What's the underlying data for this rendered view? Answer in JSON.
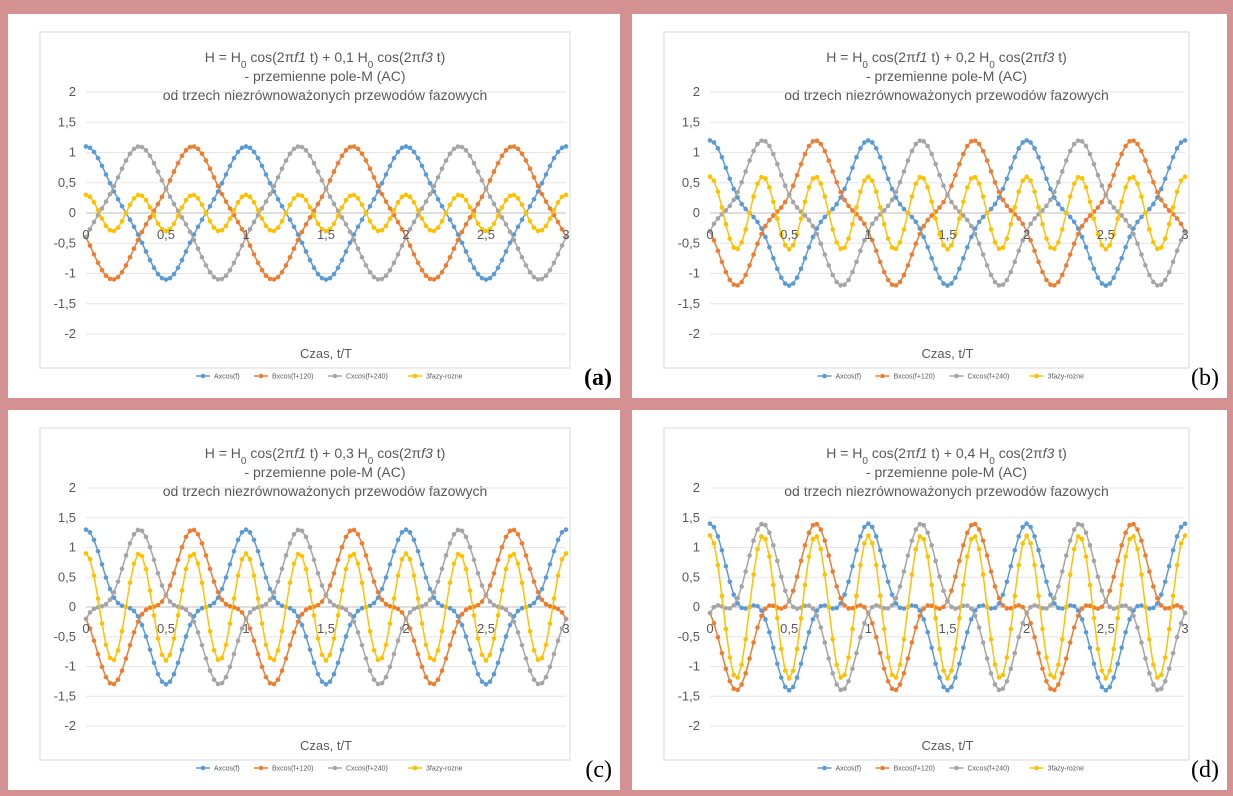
{
  "panels": [
    {
      "tag": "(a)",
      "tag_bold": true,
      "title_lines": [
        "H = H0 cos(2πf1 t)  +  0,1 H0 cos(2πf3 t)",
        "- przemienne pole-M (AC)",
        "od trzech niezrównoważonych przewodów fazowych"
      ],
      "title_parts": {
        "prefix": "H = H",
        "sub0": "0",
        "mid1": " cos(2π",
        "f1": "f1",
        "mid2": " t)  +  0,1 H",
        "sub0b": "0",
        "mid3": " cos(2π",
        "f3": "f3",
        "end": " t)"
      }
    },
    {
      "tag": "(b)",
      "tag_bold": false,
      "title_lines": [
        "H = H0 cos(2πf1 t)  +  0,2 H0 cos(2πf3 t)",
        "- przemienne pole-M (AC)",
        "od trzech niezrównoważonych przewodów fazowych"
      ],
      "title_parts": {
        "prefix": "H = H",
        "sub0": "0",
        "mid1": " cos(2π",
        "f1": "f1",
        "mid2": " t)  +  0,2 H",
        "sub0b": "0",
        "mid3": " cos(2π",
        "f3": "f3",
        "end": " t)"
      }
    },
    {
      "tag": "(c)",
      "tag_bold": false,
      "title_lines": [
        "H = H0 cos(2πf1 t)  +  0,3 H0 cos(2πf3 t)",
        "- przemienne pole-M (AC)",
        "od trzech niezrównoważonych przewodów fazowych"
      ],
      "title_parts": {
        "prefix": "H = H",
        "sub0": "0",
        "mid1": " cos(2π",
        "f1": "f1",
        "mid2": " t)  +  0,3 H",
        "sub0b": "0",
        "mid3": " cos(2π",
        "f3": "f3",
        "end": " t)"
      }
    },
    {
      "tag": "(d)",
      "tag_bold": false,
      "title_lines": [
        "H = H0 cos(2πf1 t)  +  0,4 H0 cos(2πf3 t)",
        "- przemienne pole-M (AC)",
        "od trzech niezrównoważonych przewodów fazowych"
      ],
      "title_parts": {
        "prefix": "H = H",
        "sub0": "0",
        "mid1": " cos(2π",
        "f1": "f1",
        "mid2": " t)  +  0,4 H",
        "sub0b": "0",
        "mid3": " cos(2π",
        "f3": "f3",
        "end": " t)"
      }
    }
  ],
  "chart_data": [
    {
      "type": "line",
      "title": "H = H0 cos(2πf1 t) + 0,1 H0 cos(2πf3 t) - przemienne pole-M (AC) od trzech niezrównoważonych przewodów fazowych",
      "xlabel": "Czas, t/T",
      "ylabel": "",
      "xlim": [
        0,
        3
      ],
      "ylim": [
        -2,
        2
      ],
      "x_ticks": [
        "0",
        "0,5",
        "1",
        "1,5",
        "2",
        "2,5",
        "3"
      ],
      "y_ticks": [
        "2",
        "1,5",
        "1",
        "0,5",
        "0",
        "-0,5",
        "-1",
        "-1,5",
        "-2"
      ],
      "legend_position": "bottom",
      "grid": true,
      "amp3": 0.1,
      "x": "0 to 3, step 0.025 (121 points per series)",
      "series": [
        {
          "name": "Axcos(f)",
          "color": "#5b9bd5",
          "formula": "cos(2π·t) + 0,1·cos(6π·t)"
        },
        {
          "name": "Bxcos(f+120)",
          "color": "#ed7d31",
          "formula": "cos(2π·t + 120°) + 0,1·cos(6π·t)"
        },
        {
          "name": "Cxcos(f+240)",
          "color": "#a5a5a5",
          "formula": "cos(2π·t + 240°) + 0,1·cos(6π·t)"
        },
        {
          "name": "3fazy-rozne",
          "color": "#ffc000",
          "formula": "sum of the three series"
        }
      ]
    },
    {
      "type": "line",
      "title": "H = H0 cos(2πf1 t) + 0,2 H0 cos(2πf3 t) - przemienne pole-M (AC) od trzech niezrównoważonych przewodów fazowych",
      "xlabel": "Czas, t/T",
      "ylabel": "",
      "xlim": [
        0,
        3
      ],
      "ylim": [
        -2,
        2
      ],
      "x_ticks": [
        "0",
        "0,5",
        "1",
        "1,5",
        "2",
        "2,5",
        "3"
      ],
      "y_ticks": [
        "2",
        "1,5",
        "1",
        "0,5",
        "0",
        "-0,5",
        "-1",
        "-1,5",
        "-2"
      ],
      "legend_position": "bottom",
      "grid": true,
      "amp3": 0.2,
      "x": "0 to 3, step 0.025 (121 points per series)",
      "series": [
        {
          "name": "Axcos(f)",
          "color": "#5b9bd5",
          "formula": "cos(2π·t) + 0,2·cos(6π·t)"
        },
        {
          "name": "Bxcos(f+120)",
          "color": "#ed7d31",
          "formula": "cos(2π·t + 120°) + 0,2·cos(6π·t)"
        },
        {
          "name": "Cxcos(f+240)",
          "color": "#a5a5a5",
          "formula": "cos(2π·t + 240°) + 0,2·cos(6π·t)"
        },
        {
          "name": "3fazy-rozne",
          "color": "#ffc000",
          "formula": "sum of the three series"
        }
      ]
    },
    {
      "type": "line",
      "title": "H = H0 cos(2πf1 t) + 0,3 H0 cos(2πf3 t) - przemienne pole-M (AC) od trzech niezrównoważonych przewodów fazowych",
      "xlabel": "Czas, t/T",
      "ylabel": "",
      "xlim": [
        0,
        3
      ],
      "ylim": [
        -2,
        2
      ],
      "x_ticks": [
        "0",
        "0,5",
        "1",
        "1,5",
        "2",
        "2,5",
        "3"
      ],
      "y_ticks": [
        "2",
        "1,5",
        "1",
        "0,5",
        "0",
        "-0,5",
        "-1",
        "-1,5",
        "-2"
      ],
      "legend_position": "bottom",
      "grid": true,
      "amp3": 0.3,
      "x": "0 to 3, step 0.025 (121 points per series)",
      "series": [
        {
          "name": "Axcos(f)",
          "color": "#5b9bd5",
          "formula": "cos(2π·t) + 0,3·cos(6π·t)"
        },
        {
          "name": "Bxcos(f+120)",
          "color": "#ed7d31",
          "formula": "cos(2π·t + 120°) + 0,3·cos(6π·t)"
        },
        {
          "name": "Cxcos(f+240)",
          "color": "#a5a5a5",
          "formula": "cos(2π·t + 240°) + 0,3·cos(6π·t)"
        },
        {
          "name": "3fazy-rozne",
          "color": "#ffc000",
          "formula": "sum of the three series"
        }
      ]
    },
    {
      "type": "line",
      "title": "H = H0 cos(2πf1 t) + 0,4 H0 cos(2πf3 t) - przemienne pole-M (AC) od trzech niezrównoważonych przewodów fazowych",
      "xlabel": "Czas, t/T",
      "ylabel": "",
      "xlim": [
        0,
        3
      ],
      "ylim": [
        -2,
        2
      ],
      "x_ticks": [
        "0",
        "0,5",
        "1",
        "1,5",
        "2",
        "2,5",
        "3"
      ],
      "y_ticks": [
        "2",
        "1,5",
        "1",
        "0,5",
        "0",
        "-0,5",
        "-1",
        "-1,5",
        "-2"
      ],
      "legend_position": "bottom",
      "grid": true,
      "amp3": 0.4,
      "x": "0 to 3, step 0.025 (121 points per series)",
      "series": [
        {
          "name": "Axcos(f)",
          "color": "#5b9bd5",
          "formula": "cos(2π·t) + 0,4·cos(6π·t)"
        },
        {
          "name": "Bxcos(f+120)",
          "color": "#ed7d31",
          "formula": "cos(2π·t + 120°) + 0,4·cos(6π·t)"
        },
        {
          "name": "Cxcos(f+240)",
          "color": "#a5a5a5",
          "formula": "cos(2π·t + 240°) + 0,4·cos(6π·t)"
        },
        {
          "name": "3fazy-rozne",
          "color": "#ffc000",
          "formula": "sum of the three series"
        }
      ]
    }
  ]
}
